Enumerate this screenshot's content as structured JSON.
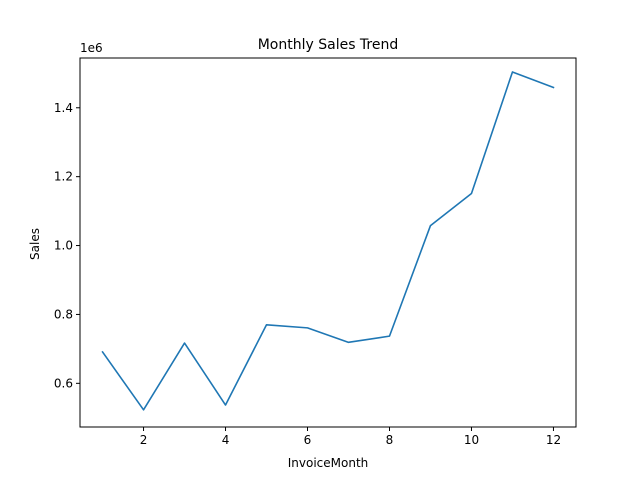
{
  "chart_data": {
    "type": "line",
    "title": "Monthly Sales Trend",
    "xlabel": "InvoiceMonth",
    "ylabel": "Sales",
    "y_offset_label": "1e6",
    "x": [
      1,
      2,
      3,
      4,
      5,
      6,
      7,
      8,
      9,
      10,
      11,
      12
    ],
    "xlim": [
      0.45,
      12.55
    ],
    "ylim": [
      0.4732,
      1.5445
    ],
    "x_ticks": [
      2,
      4,
      6,
      8,
      10,
      12
    ],
    "x_tick_labels": [
      "2",
      "4",
      "6",
      "8",
      "10",
      "12"
    ],
    "y_ticks": [
      0.6,
      0.8,
      1.0,
      1.2,
      1.4
    ],
    "y_tick_labels": [
      "0.6",
      "0.8",
      "1.0",
      "1.2",
      "1.4"
    ],
    "grid": false,
    "series": [
      {
        "color": "#1f77b4",
        "values": [
          0.691,
          0.523,
          0.717,
          0.537,
          0.77,
          0.761,
          0.719,
          0.737,
          1.058,
          1.151,
          1.504,
          1.459
        ]
      }
    ]
  }
}
